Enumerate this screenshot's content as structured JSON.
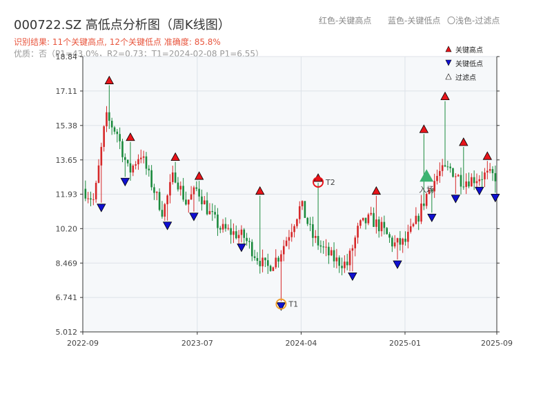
{
  "header": {
    "title": "000722.SZ 高低点分析图（周K线图）",
    "legend_red": "红色-关键高点",
    "legend_blue": "蓝色-关键低点",
    "legend_light": "〇浅色-过滤点",
    "summary": "识别结果: 11个关键高点, 12个关键低点  准确度: 85.8%",
    "quality": "优质：否（P1=43.0%，R2=0.73；T1=2024-02-08 P1=6.55）"
  },
  "colors": {
    "up": "#d62728",
    "down": "#1a8a3c",
    "high_marker": "#e8141a",
    "low_marker": "#1010d0",
    "accent_orange": "#f0a030",
    "entry_green": "#3cb371"
  },
  "chart_data": {
    "type": "candlestick",
    "title": "000722.SZ 高低点分析图（周K线图）",
    "xlabel": "",
    "ylabel": "",
    "ylim": [
      5.012,
      18.84
    ],
    "y_ticks": [
      "5.012",
      "6.741",
      "8.469",
      "10.20",
      "11.93",
      "13.65",
      "15.38",
      "17.11",
      "18.84"
    ],
    "x_ticks": [
      {
        "date": "2022-09",
        "label": "2022-09"
      },
      {
        "date": "2023-07",
        "label": "2023-07"
      },
      {
        "date": "2024-04",
        "label": "2024-04"
      },
      {
        "date": "2025-01",
        "label": "2025-01"
      },
      {
        "date": "2025-09",
        "label": "2025-09"
      }
    ],
    "xlim": [
      "2022-09",
      "2025-09"
    ],
    "trend": [
      [
        "2022-09",
        12.2
      ],
      [
        "2022-10",
        11.6
      ],
      [
        "2022-11",
        15.8
      ],
      [
        "2022-12",
        15.0
      ],
      [
        "2023-01",
        13.0
      ],
      [
        "2023-02",
        14.0
      ],
      [
        "2023-03",
        12.5
      ],
      [
        "2023-04",
        11.0
      ],
      [
        "2023-05",
        13.0
      ],
      [
        "2023-06",
        11.5
      ],
      [
        "2023-07",
        12.2
      ],
      [
        "2023-08",
        11.0
      ],
      [
        "2023-09",
        10.2
      ],
      [
        "2023-10",
        10.0
      ],
      [
        "2023-11",
        9.8
      ],
      [
        "2023-12",
        8.9
      ],
      [
        "2024-01",
        8.2
      ],
      [
        "2024-02",
        8.8
      ],
      [
        "2024-03",
        10.0
      ],
      [
        "2024-04",
        11.4
      ],
      [
        "2024-05",
        9.8
      ],
      [
        "2024-06",
        9.1
      ],
      [
        "2024-07",
        8.6
      ],
      [
        "2024-08",
        8.4
      ],
      [
        "2024-09",
        10.3
      ],
      [
        "2024-10",
        10.7
      ],
      [
        "2024-11",
        10.2
      ],
      [
        "2024-12",
        9.4
      ],
      [
        "2025-01",
        9.5
      ],
      [
        "2025-02",
        10.6
      ],
      [
        "2025-03",
        12.0
      ],
      [
        "2025-04",
        13.0
      ],
      [
        "2025-05",
        13.2
      ],
      [
        "2025-06",
        12.6
      ],
      [
        "2025-07",
        12.7
      ],
      [
        "2025-08",
        12.9
      ],
      [
        "2025-09",
        12.8
      ]
    ],
    "key_highs": [
      {
        "date": "2022-11-10",
        "price": 17.4
      },
      {
        "date": "2023-01-05",
        "price": 14.55
      },
      {
        "date": "2023-05-04",
        "price": 13.55
      },
      {
        "date": "2023-07-06",
        "price": 12.6
      },
      {
        "date": "2023-12-14",
        "price": 11.85
      },
      {
        "date": "2024-05-16",
        "price": 12.5
      },
      {
        "date": "2024-10-17",
        "price": 11.85
      },
      {
        "date": "2025-02-20",
        "price": 14.95
      },
      {
        "date": "2025-04-17",
        "price": 16.6
      },
      {
        "date": "2025-06-05",
        "price": 14.3
      },
      {
        "date": "2025-08-07",
        "price": 13.6
      }
    ],
    "key_lows": [
      {
        "date": "2022-10-20",
        "price": 11.5
      },
      {
        "date": "2022-12-22",
        "price": 12.8
      },
      {
        "date": "2023-04-13",
        "price": 10.6
      },
      {
        "date": "2023-06-22",
        "price": 11.05
      },
      {
        "date": "2023-10-26",
        "price": 9.5
      },
      {
        "date": "2024-02-08",
        "price": 6.55
      },
      {
        "date": "2024-08-15",
        "price": 8.05
      },
      {
        "date": "2024-12-12",
        "price": 8.65
      },
      {
        "date": "2025-03-13",
        "price": 11.0
      },
      {
        "date": "2025-05-15",
        "price": 11.95
      },
      {
        "date": "2025-07-17",
        "price": 12.35
      },
      {
        "date": "2025-08-28",
        "price": 12.0
      }
    ],
    "points": [
      {
        "label": "T1",
        "date": "2024-02-08",
        "price": 6.55
      },
      {
        "label": "T2",
        "date": "2024-05-16",
        "price": 12.5
      }
    ],
    "entry": {
      "label": "入场",
      "date": "2025-02-27",
      "price": 12.8
    },
    "legend": [
      "关键高点",
      "关键低点",
      "过滤点"
    ],
    "legend_position": "top-right",
    "grid": true
  }
}
